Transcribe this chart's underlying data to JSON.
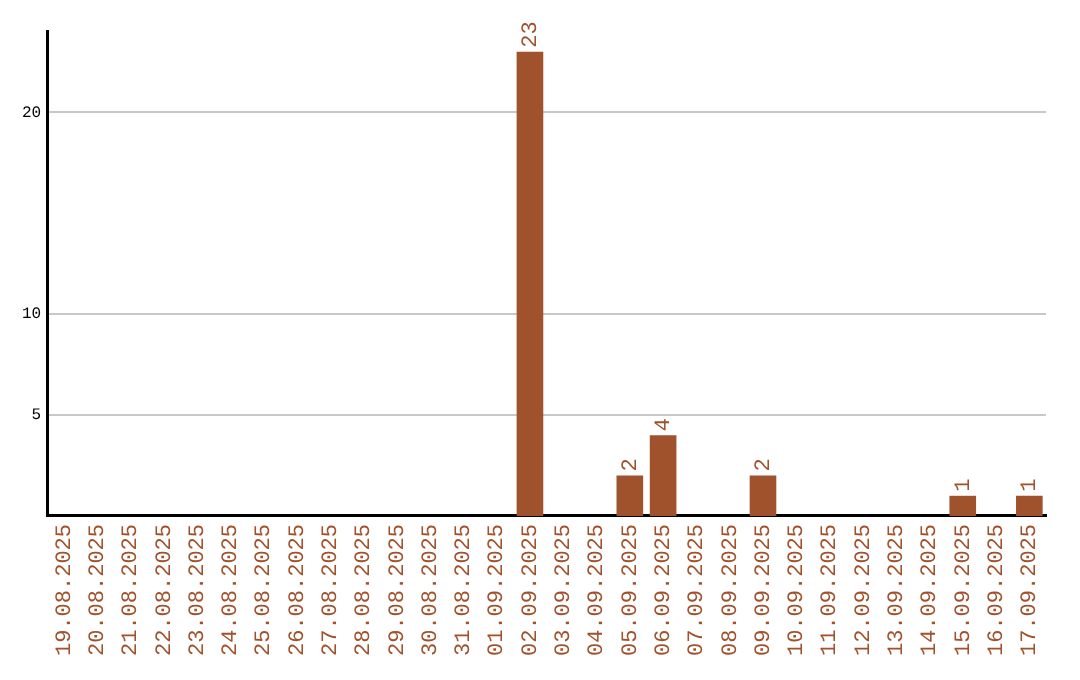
{
  "chart_data": {
    "type": "bar",
    "categories": [
      "19.08.2025",
      "20.08.2025",
      "21.08.2025",
      "22.08.2025",
      "23.08.2025",
      "24.08.2025",
      "25.08.2025",
      "26.08.2025",
      "27.08.2025",
      "28.08.2025",
      "29.08.2025",
      "30.08.2025",
      "31.08.2025",
      "01.09.2025",
      "02.09.2025",
      "03.09.2025",
      "04.09.2025",
      "05.09.2025",
      "06.09.2025",
      "07.09.2025",
      "08.09.2025",
      "09.09.2025",
      "10.09.2025",
      "11.09.2025",
      "12.09.2025",
      "13.09.2025",
      "14.09.2025",
      "15.09.2025",
      "16.09.2025",
      "17.09.2025"
    ],
    "values": [
      0,
      0,
      0,
      0,
      0,
      0,
      0,
      0,
      0,
      0,
      0,
      0,
      0,
      0,
      23,
      0,
      0,
      2,
      4,
      0,
      0,
      2,
      0,
      0,
      0,
      0,
      0,
      1,
      0,
      1
    ],
    "value_labels": [
      null,
      null,
      null,
      null,
      null,
      null,
      null,
      null,
      null,
      null,
      null,
      null,
      null,
      null,
      "23",
      null,
      null,
      "2",
      "4",
      null,
      null,
      "2",
      null,
      null,
      null,
      null,
      null,
      "1",
      null,
      "1"
    ],
    "color": "#a0522d",
    "ylim": [
      0,
      24
    ],
    "yticks": [
      5,
      10,
      20
    ],
    "grid": "y",
    "legend": false
  }
}
